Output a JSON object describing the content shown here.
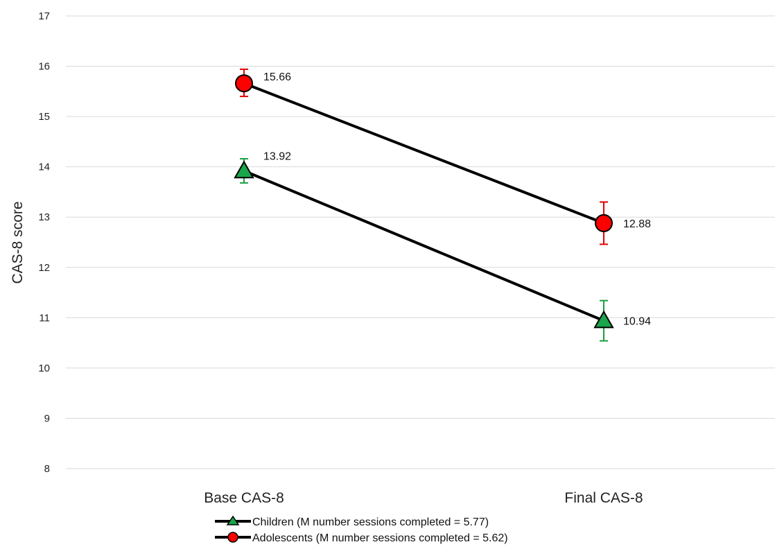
{
  "chart_data": {
    "type": "line",
    "title": "",
    "xlabel": "",
    "ylabel": "CAS-8 score",
    "ylim": [
      8,
      17
    ],
    "yticks": [
      8,
      9,
      10,
      11,
      12,
      13,
      14,
      15,
      16,
      17
    ],
    "grid": true,
    "legend_position": "bottom",
    "categories": [
      "Base CAS-8",
      "Final CAS-8"
    ],
    "series": [
      {
        "name": "Children (M number sessions completed = 5.77)",
        "marker": "triangle",
        "marker_color": "#1aa64a",
        "error_color": "#1a9e40",
        "values": [
          13.92,
          10.94
        ],
        "error_low": [
          13.68,
          10.54
        ],
        "error_high": [
          14.16,
          11.34
        ],
        "labels": [
          "13.92",
          "10.94"
        ]
      },
      {
        "name": "Adolescents (M number sessions completed = 5.62)",
        "marker": "circle",
        "marker_color": "#ff0000",
        "error_color": "#e00000",
        "values": [
          15.66,
          12.88
        ],
        "error_low": [
          15.4,
          12.46
        ],
        "error_high": [
          15.94,
          13.3
        ],
        "labels": [
          "15.66",
          "12.88"
        ]
      }
    ]
  }
}
